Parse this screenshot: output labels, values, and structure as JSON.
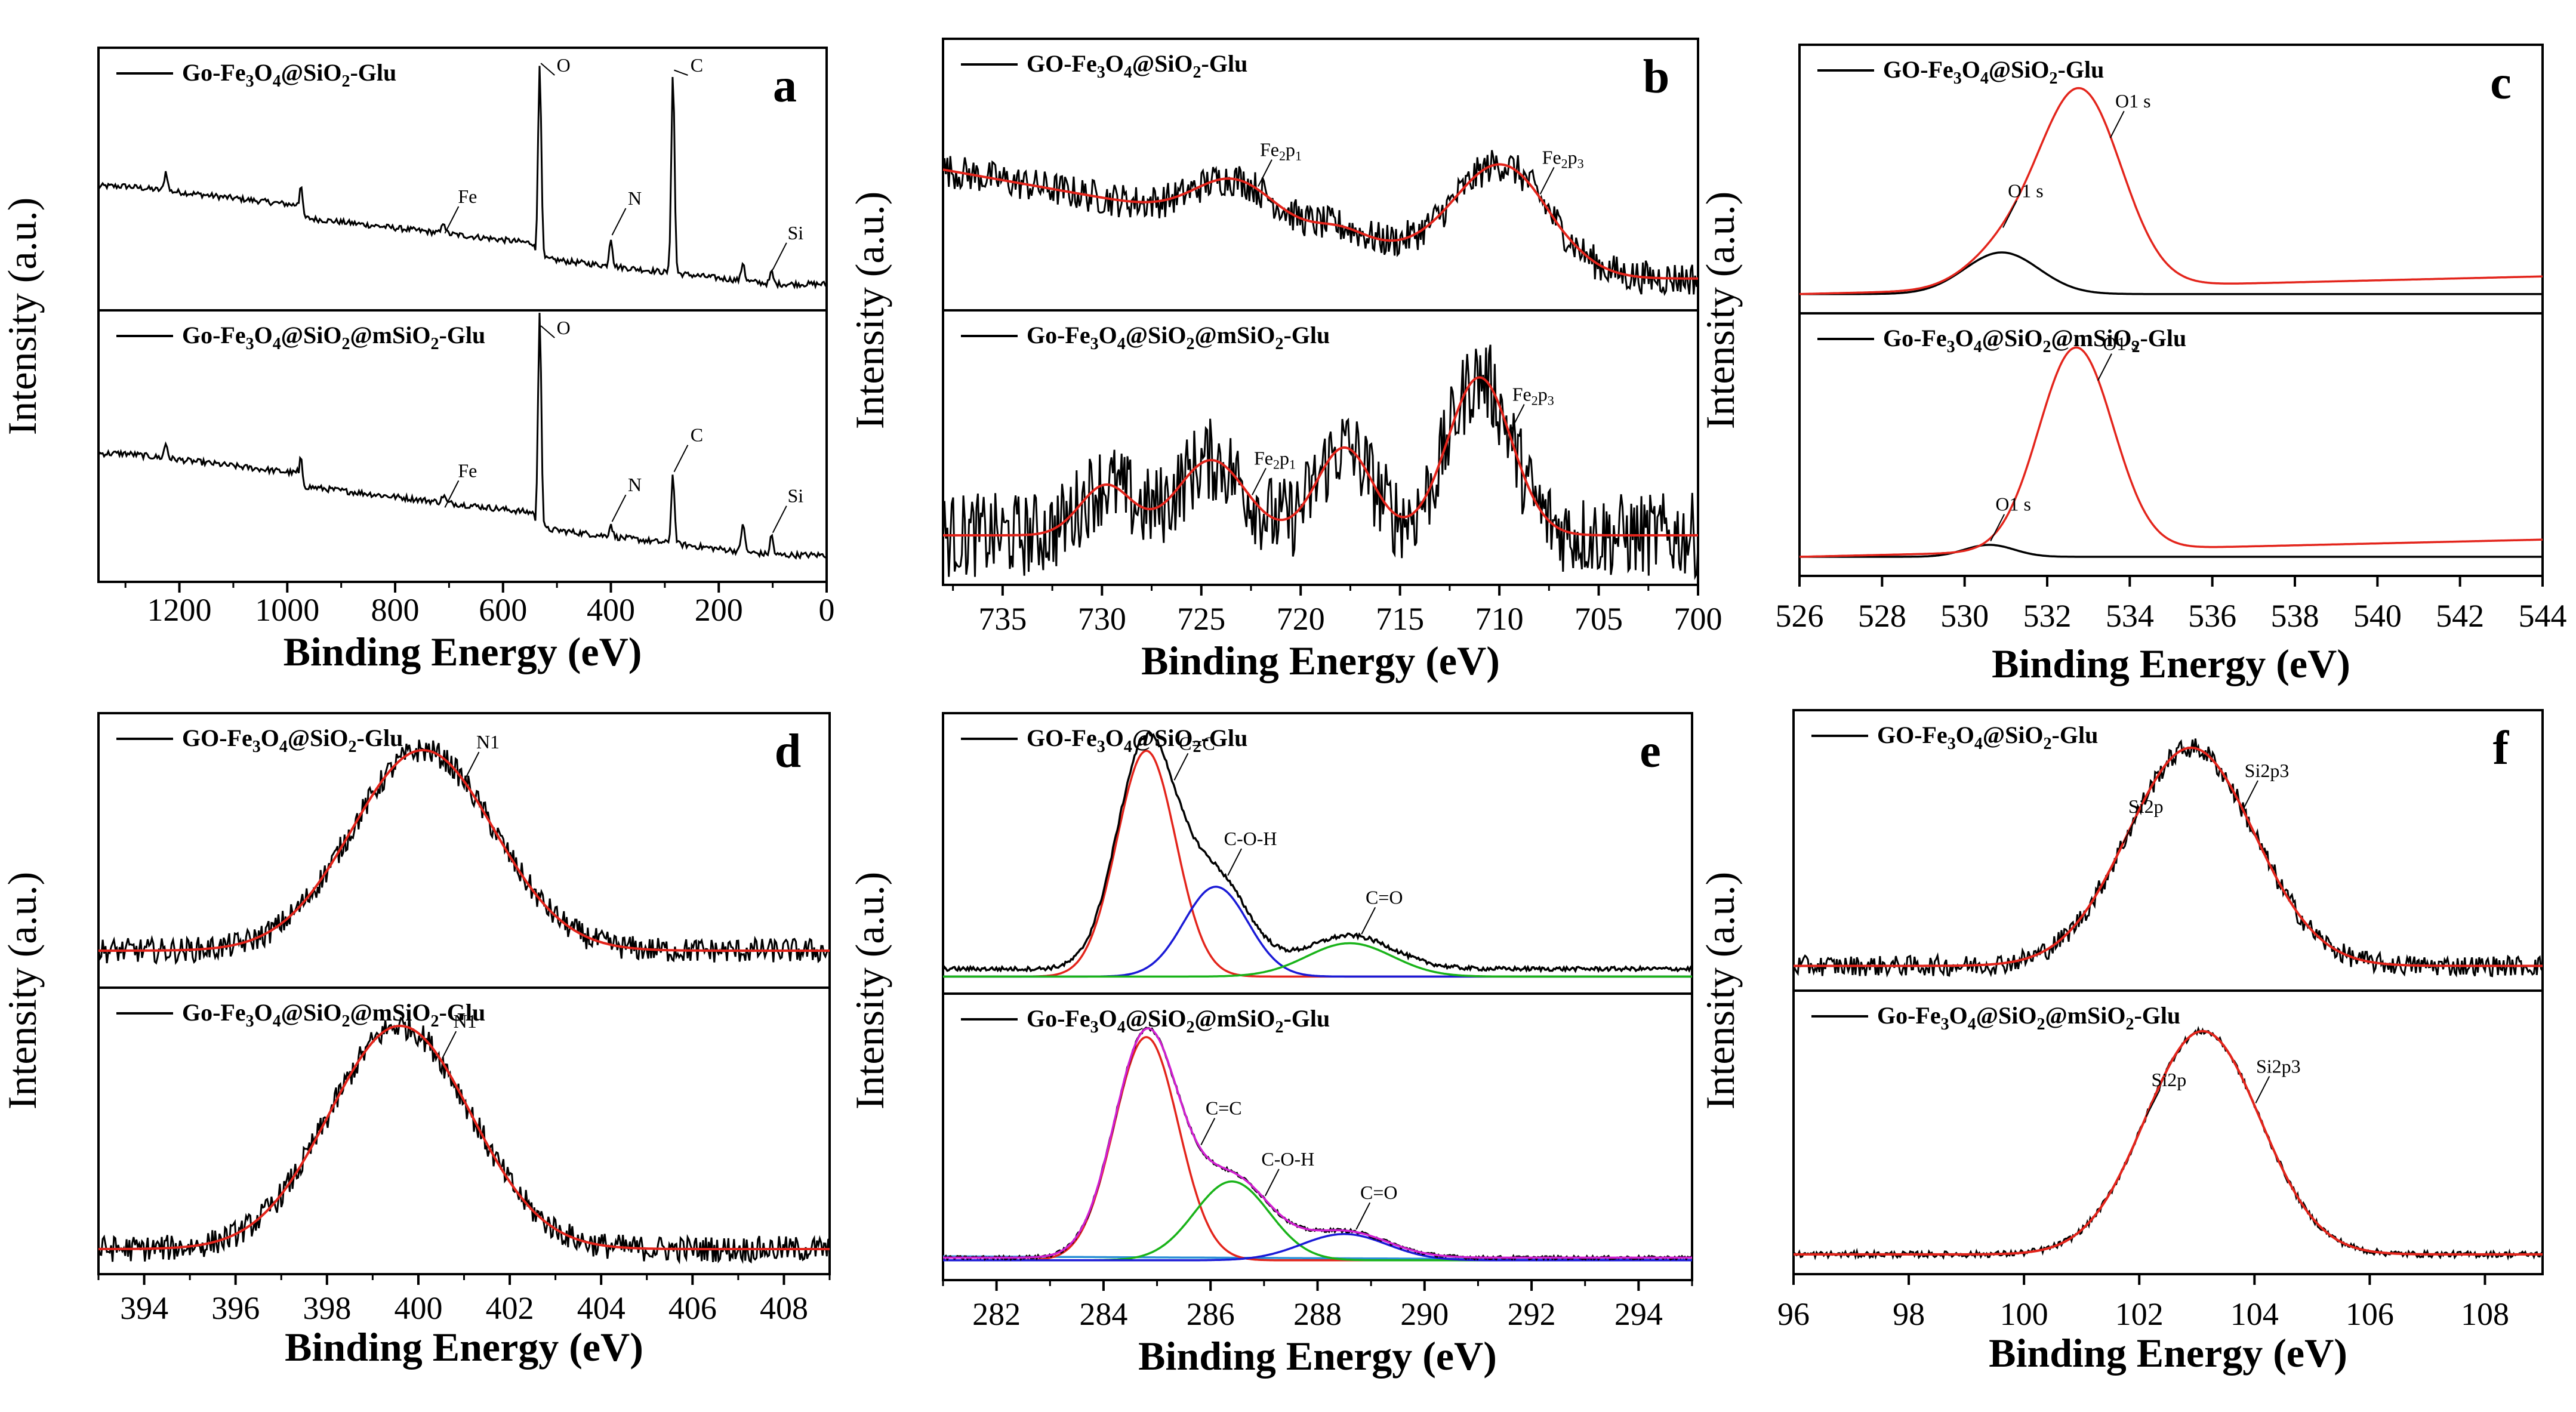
{
  "figure": {
    "type": "multi-panel XPS spectra",
    "line_colors": {
      "raw": "#000000",
      "fit": "#e3241b",
      "c1": "#e3241b",
      "c2": "#1a1ad6",
      "c3": "#19b319",
      "env": "#d11fd1",
      "bg": "#2a8fd6"
    }
  },
  "chart_data": [
    {
      "id": "a",
      "type": "line",
      "letter": "a",
      "xlabel": "Binding Energy (eV)",
      "ylabel": "Intensity (a.u.)",
      "xlim": [
        1350,
        0
      ],
      "xticks": [
        1200,
        1000,
        800,
        600,
        400,
        200,
        0
      ],
      "series": [
        {
          "name": "Go-Fe3O4@SiO2-Glu",
          "legend_parts": [
            "Go-Fe",
            "3",
            "O",
            "4",
            "@SiO",
            "2",
            "-Glu"
          ],
          "color": "#000000",
          "kind": "survey",
          "peaks": [
            {
              "x": 532,
              "h": 0.82
            },
            {
              "x": 285,
              "h": 0.84
            },
            {
              "x": 400,
              "h": 0.12
            },
            {
              "x": 710,
              "h": 0.05
            },
            {
              "x": 975,
              "h": 0.14
            },
            {
              "x": 1225,
              "h": 0.08
            },
            {
              "x": 155,
              "h": 0.08
            },
            {
              "x": 102,
              "h": 0.05
            }
          ]
        },
        {
          "name": "Go-Fe3O4@SiO2@mSiO2-Glu",
          "legend_parts": [
            "Go-Fe",
            "3",
            "O",
            "4",
            "@SiO",
            "2",
            "@mSiO",
            "2",
            "-Glu"
          ],
          "color": "#000000",
          "kind": "survey",
          "peaks": [
            {
              "x": 532,
              "h": 0.88
            },
            {
              "x": 285,
              "h": 0.28
            },
            {
              "x": 400,
              "h": 0.05
            },
            {
              "x": 710,
              "h": 0.03
            },
            {
              "x": 975,
              "h": 0.11
            },
            {
              "x": 1225,
              "h": 0.06
            },
            {
              "x": 155,
              "h": 0.12
            },
            {
              "x": 102,
              "h": 0.08
            }
          ]
        }
      ],
      "annotations": [
        {
          "panel": 0,
          "label": "O",
          "x": 532
        },
        {
          "panel": 0,
          "label": "C",
          "x": 285
        },
        {
          "panel": 0,
          "label": "N",
          "x": 400
        },
        {
          "panel": 0,
          "label": "Fe",
          "x": 710
        },
        {
          "panel": 0,
          "label": "Si",
          "x": 102
        },
        {
          "panel": 1,
          "label": "O",
          "x": 532
        },
        {
          "panel": 1,
          "label": "C",
          "x": 285
        },
        {
          "panel": 1,
          "label": "N",
          "x": 400
        },
        {
          "panel": 1,
          "label": "Fe",
          "x": 710
        },
        {
          "panel": 1,
          "label": "Si",
          "x": 102
        }
      ]
    },
    {
      "id": "b",
      "type": "line",
      "letter": "b",
      "xlabel": "Binding Energy (eV)",
      "ylabel": "Intensity (a.u.)",
      "xlim": [
        738,
        700
      ],
      "xticks": [
        735,
        730,
        725,
        720,
        715,
        710,
        705,
        700
      ],
      "series": [
        {
          "name": "GO-Fe3O4@SiO2-Glu",
          "legend_parts": [
            "GO-Fe",
            "3",
            "O",
            "4",
            "@SiO",
            "2",
            "-Glu"
          ],
          "color": "#000000",
          "kind": "noisy",
          "noise": 0.07,
          "base": [
            {
              "x": 738,
              "y": 0.52
            },
            {
              "x": 707,
              "y": 0.08
            },
            {
              "x": 700,
              "y": 0.08
            }
          ],
          "peaks": [
            {
              "x": 709.8,
              "h": 0.42,
              "w": 2.4
            },
            {
              "x": 723.3,
              "h": 0.17,
              "w": 2.0
            },
            {
              "x": 718,
              "h": 0.05,
              "w": 1.3
            }
          ],
          "fit_color": "#e3241b"
        },
        {
          "name": "Go-Fe3O4@SiO2@mSiO2-Glu",
          "legend_parts": [
            "Go-Fe",
            "3",
            "O",
            "4",
            "@SiO",
            "2",
            "@mSiO",
            "2",
            "-Glu"
          ],
          "color": "#000000",
          "kind": "noisy",
          "noise": 0.17,
          "base": [
            {
              "x": 738,
              "y": 0.15
            },
            {
              "x": 700,
              "y": 0.15
            }
          ],
          "peaks": [
            {
              "x": 711,
              "h": 0.63,
              "w": 1.6
            },
            {
              "x": 717.8,
              "h": 0.35,
              "w": 1.4
            },
            {
              "x": 724.5,
              "h": 0.3,
              "w": 1.7
            },
            {
              "x": 729.8,
              "h": 0.2,
              "w": 1.3
            }
          ],
          "fit_color": "#e3241b"
        }
      ],
      "annotations": [
        {
          "panel": 0,
          "label": "Fe2p1",
          "x": 722.2
        },
        {
          "panel": 0,
          "label": "Fe2p3",
          "x": 708
        },
        {
          "panel": 1,
          "label": "Fe2p1",
          "x": 722.5
        },
        {
          "panel": 1,
          "label": "Fe2p3",
          "x": 709.5
        }
      ]
    },
    {
      "id": "c",
      "type": "line",
      "letter": "c",
      "xlabel": "Binding Energy (eV)",
      "ylabel": "Intensity (a.u.)",
      "xlim": [
        526,
        544
      ],
      "xticks": [
        526,
        528,
        530,
        532,
        534,
        536,
        538,
        540,
        542,
        544
      ],
      "series": [
        {
          "name": "GO-Fe3O4@SiO2-Glu",
          "legend_parts": [
            "GO-Fe",
            "3",
            "O",
            "4",
            "@SiO",
            "2",
            "-Glu"
          ],
          "kind": "fit",
          "components": [
            {
              "color": "#000000",
              "peaks": [
                {
                  "x": 530.9,
                  "h": 0.17,
                  "w": 0.9
                }
              ],
              "base": 0.03
            },
            {
              "color": "#e3241b",
              "peaks": [
                {
                  "x": 532.8,
                  "h": 0.8,
                  "w": 1.0
                },
                {
                  "x": 530.9,
                  "h": 0.13,
                  "w": 0.9
                }
              ],
              "base": 0.03,
              "slope": 0.004
            }
          ]
        },
        {
          "name": "Go-Fe3O4@SiO2@mSiO2-Glu",
          "legend_parts": [
            "Go-Fe",
            "3",
            "O",
            "4",
            "@SiO",
            "2",
            "@mSiO",
            "2",
            "-Glu"
          ],
          "kind": "fit",
          "components": [
            {
              "color": "#000000",
              "peaks": [
                {
                  "x": 530.6,
                  "h": 0.05,
                  "w": 0.6
                }
              ],
              "base": 0.03
            },
            {
              "color": "#e3241b",
              "peaks": [
                {
                  "x": 532.7,
                  "h": 0.85,
                  "w": 0.9
                }
              ],
              "base": 0.03,
              "slope": 0.004
            }
          ]
        }
      ],
      "annotations": [
        {
          "panel": 0,
          "label": "O1 s",
          "x": 530.9
        },
        {
          "panel": 0,
          "label": "O1 s",
          "x": 533.5
        },
        {
          "panel": 1,
          "label": "O1 s",
          "x": 530.6
        },
        {
          "panel": 1,
          "label": "O1 s",
          "x": 533.2
        }
      ]
    },
    {
      "id": "d",
      "type": "line",
      "letter": "d",
      "xlabel": "Binding Energy (eV)",
      "ylabel": "Intensity (a.u.)",
      "xlim": [
        393,
        409
      ],
      "xticks": [
        394,
        396,
        398,
        400,
        402,
        404,
        406,
        408
      ],
      "series": [
        {
          "name": "GO-Fe3O4@SiO2-Glu",
          "legend_parts": [
            "GO-Fe",
            "3",
            "O",
            "4",
            "@SiO",
            "2",
            "-Glu"
          ],
          "kind": "noisy",
          "noise": 0.05,
          "base": [
            {
              "x": 393,
              "y": 0.1
            },
            {
              "x": 409,
              "y": 0.1
            }
          ],
          "peaks": [
            {
              "x": 400.1,
              "h": 0.8,
              "w": 1.55
            }
          ],
          "fit_color": "#e3241b"
        },
        {
          "name": "Go-Fe3O4@SiO2@mSiO2-Glu",
          "legend_parts": [
            "Go-Fe",
            "3",
            "O",
            "4",
            "@SiO",
            "2",
            "@mSiO",
            "2",
            "-Glu"
          ],
          "kind": "noisy",
          "noise": 0.05,
          "base": [
            {
              "x": 393,
              "y": 0.05
            },
            {
              "x": 409,
              "y": 0.05
            }
          ],
          "peaks": [
            {
              "x": 399.6,
              "h": 0.85,
              "w": 1.55
            }
          ],
          "fit_color": "#e3241b"
        }
      ],
      "annotations": [
        {
          "panel": 0,
          "label": "N1",
          "x": 401
        },
        {
          "panel": 1,
          "label": "N1",
          "x": 400.5
        }
      ]
    },
    {
      "id": "e",
      "type": "line",
      "letter": "e",
      "xlabel": "Binding Energy (eV)",
      "ylabel": "Intensity (a.u.)",
      "xlim": [
        281,
        295
      ],
      "xticks": [
        282,
        284,
        286,
        288,
        290,
        292,
        294
      ],
      "series": [
        {
          "name": "GO-Fe3O4@SiO2-Glu",
          "legend_parts": [
            "GO-Fe",
            "3",
            "O",
            "4",
            "@SiO",
            "2",
            "-Glu"
          ],
          "kind": "fit",
          "noisy_raw": true,
          "components": [
            {
              "color": "#e3241b",
              "peaks": [
                {
                  "x": 284.8,
                  "h": 0.88,
                  "w": 0.55
                }
              ],
              "base": 0.02
            },
            {
              "color": "#1a1ad6",
              "peaks": [
                {
                  "x": 286.1,
                  "h": 0.35,
                  "w": 0.6
                }
              ],
              "base": 0.02
            },
            {
              "color": "#19b319",
              "peaks": [
                {
                  "x": 288.6,
                  "h": 0.13,
                  "w": 0.8
                }
              ],
              "base": 0.02
            },
            {
              "color": "#000000",
              "peaks": [
                {
                  "x": 284.8,
                  "h": 0.88,
                  "w": 0.55
                },
                {
                  "x": 286.1,
                  "h": 0.35,
                  "w": 0.6
                },
                {
                  "x": 288.6,
                  "h": 0.13,
                  "w": 0.8
                }
              ],
              "base": 0.05,
              "noise": 0.008
            }
          ]
        },
        {
          "name": "Go-Fe3O4@SiO2@mSiO2-Glu",
          "legend_parts": [
            "Go-Fe",
            "3",
            "O",
            "4",
            "@SiO",
            "2",
            "@mSiO",
            "2",
            "-Glu"
          ],
          "kind": "fit",
          "components": [
            {
              "color": "#2a8fd6",
              "peaks": [
                {
                  "x": 288.5,
                  "h": 0.0,
                  "w": 0.8
                }
              ],
              "base": 0.045,
              "slope": -0.001
            },
            {
              "color": "#e3241b",
              "peaks": [
                {
                  "x": 284.8,
                  "h": 0.85,
                  "w": 0.6
                }
              ],
              "base": 0.03
            },
            {
              "color": "#19b319",
              "peaks": [
                {
                  "x": 286.4,
                  "h": 0.3,
                  "w": 0.7
                }
              ],
              "base": 0.03
            },
            {
              "color": "#1a1ad6",
              "peaks": [
                {
                  "x": 288.5,
                  "h": 0.1,
                  "w": 0.8
                }
              ],
              "base": 0.03
            },
            {
              "color": "#000000",
              "peaks": [
                {
                  "x": 284.8,
                  "h": 0.85,
                  "w": 0.6
                },
                {
                  "x": 286.4,
                  "h": 0.3,
                  "w": 0.7
                },
                {
                  "x": 288.5,
                  "h": 0.1,
                  "w": 0.8
                }
              ],
              "base": 0.04,
              "noise": 0.006
            },
            {
              "color": "#d11fd1",
              "peaks": [
                {
                  "x": 284.8,
                  "h": 0.85,
                  "w": 0.6
                },
                {
                  "x": 286.4,
                  "h": 0.3,
                  "w": 0.7
                },
                {
                  "x": 288.5,
                  "h": 0.1,
                  "w": 0.8
                }
              ],
              "base": 0.04
            }
          ]
        }
      ],
      "annotations": [
        {
          "panel": 0,
          "label": "C=C",
          "x": 285.3
        },
        {
          "panel": 0,
          "label": "C-O-H",
          "x": 286.3
        },
        {
          "panel": 0,
          "label": "C=O",
          "x": 288.8
        },
        {
          "panel": 1,
          "label": "C=C",
          "x": 285.8
        },
        {
          "panel": 1,
          "label": "C-O-H",
          "x": 287.0
        },
        {
          "panel": 1,
          "label": "C=O",
          "x": 288.7
        }
      ]
    },
    {
      "id": "f",
      "type": "line",
      "letter": "f",
      "xlabel": "Binding Energy (eV)",
      "ylabel": "Intensity (a.u.)",
      "xlim": [
        96,
        109
      ],
      "xticks": [
        96,
        98,
        100,
        102,
        104,
        106,
        108
      ],
      "series": [
        {
          "name": "GO-Fe3O4@SiO2-Glu",
          "legend_parts": [
            "GO-Fe",
            "3",
            "O",
            "4",
            "@SiO",
            "2",
            "-Glu"
          ],
          "kind": "noisy",
          "noise": 0.04,
          "base": [
            {
              "x": 96,
              "y": 0.05
            },
            {
              "x": 109,
              "y": 0.05
            }
          ],
          "peaks": [
            {
              "x": 102.9,
              "h": 0.85,
              "w": 1.1
            }
          ],
          "fit_color": "#e3241b"
        },
        {
          "name": "Go-Fe3O4@SiO2@mSiO2-Glu",
          "legend_parts": [
            "Go-Fe",
            "3",
            "O",
            "4",
            "@SiO",
            "2",
            "@mSiO",
            "2",
            "-Glu"
          ],
          "kind": "noisy",
          "noise": 0.012,
          "base": [
            {
              "x": 96,
              "y": 0.03
            },
            {
              "x": 109,
              "y": 0.03
            }
          ],
          "peaks": [
            {
              "x": 103.1,
              "h": 0.86,
              "w": 1.0
            }
          ],
          "fit_color": "#e3241b"
        }
      ],
      "annotations": [
        {
          "panel": 0,
          "label": "Si2p",
          "x": 101.7
        },
        {
          "panel": 0,
          "label": "Si2p3",
          "x": 103.8
        },
        {
          "panel": 1,
          "label": "Si2p",
          "x": 102.1
        },
        {
          "panel": 1,
          "label": "Si2p3",
          "x": 104.0
        }
      ]
    }
  ]
}
